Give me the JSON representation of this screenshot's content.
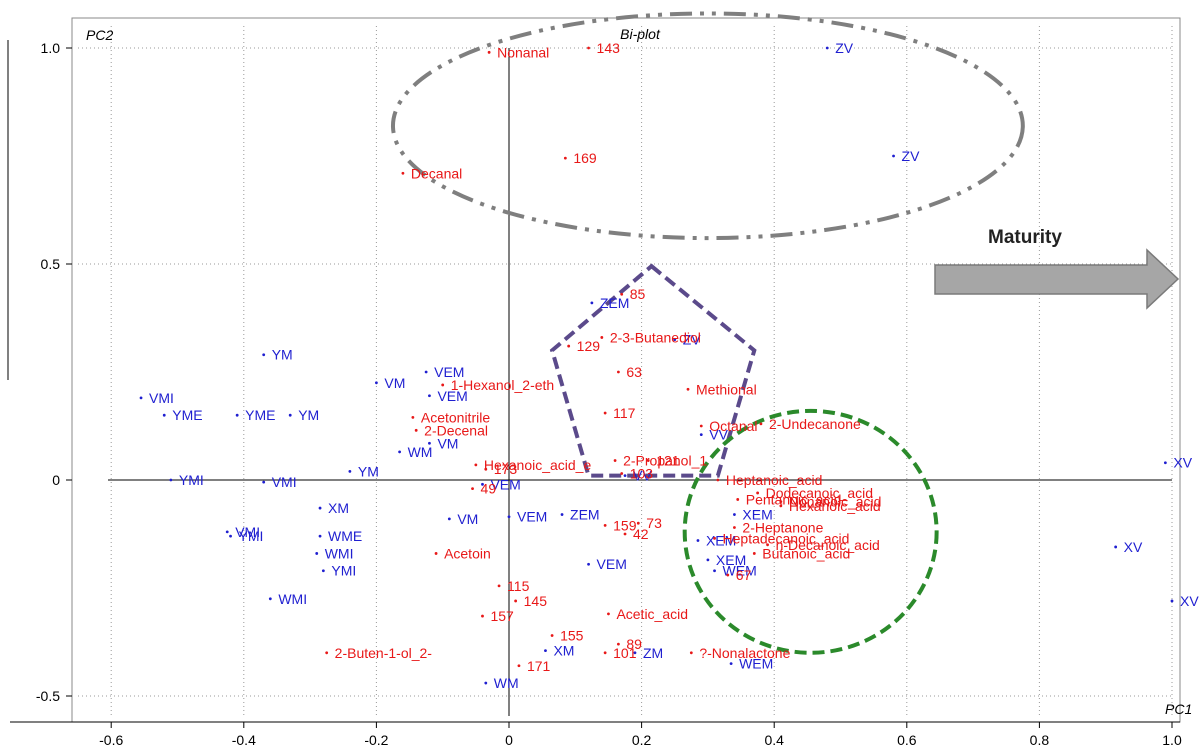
{
  "chart_data": {
    "type": "scatter",
    "title": "Bi-plot",
    "xlabel": "PC1",
    "ylabel": "PC2",
    "xlim": [
      -0.65,
      1.02
    ],
    "ylim": [
      -0.54,
      1.08
    ],
    "xticks": [
      "-0.6",
      "-0.4",
      "-0.2",
      "0",
      "0.2",
      "0.4",
      "0.6",
      "0.8",
      "1.0"
    ],
    "yticks": [
      "-0.5",
      "0",
      "0.5",
      "1.0"
    ],
    "grid": true,
    "annotation": "Maturity",
    "annotation_color": "#a6a6a6",
    "series": [
      {
        "color": "#1f1fd0",
        "points": [
          {
            "x": 0.48,
            "y": 1.0,
            "label": "ZV"
          },
          {
            "x": 0.58,
            "y": 0.75,
            "label": "ZV"
          },
          {
            "x": 0.125,
            "y": 0.41,
            "label": "ZEM"
          },
          {
            "x": 0.25,
            "y": 0.325,
            "label": "ZV"
          },
          {
            "x": -0.37,
            "y": 0.29,
            "label": "YM"
          },
          {
            "x": -0.555,
            "y": 0.19,
            "label": "VMI"
          },
          {
            "x": -0.52,
            "y": 0.15,
            "label": "YME"
          },
          {
            "x": -0.41,
            "y": 0.15,
            "label": "YME"
          },
          {
            "x": -0.33,
            "y": 0.15,
            "label": "YM"
          },
          {
            "x": -0.125,
            "y": 0.25,
            "label": "VEM"
          },
          {
            "x": -0.2,
            "y": 0.225,
            "label": "VM"
          },
          {
            "x": -0.12,
            "y": 0.195,
            "label": "VEM"
          },
          {
            "x": -0.12,
            "y": 0.085,
            "label": "VM"
          },
          {
            "x": -0.165,
            "y": 0.065,
            "label": "WM"
          },
          {
            "x": -0.24,
            "y": 0.02,
            "label": "YM"
          },
          {
            "x": 0.29,
            "y": 0.105,
            "label": "VV"
          },
          {
            "x": -0.51,
            "y": 0.0,
            "label": "YMI"
          },
          {
            "x": -0.37,
            "y": -0.005,
            "label": "VMI"
          },
          {
            "x": 0.175,
            "y": 0.01,
            "label": "VV"
          },
          {
            "x": -0.04,
            "y": -0.01,
            "label": "VEM"
          },
          {
            "x": -0.285,
            "y": -0.065,
            "label": "XM"
          },
          {
            "x": -0.09,
            "y": -0.09,
            "label": "VM"
          },
          {
            "x": 0.0,
            "y": -0.085,
            "label": "VEM"
          },
          {
            "x": 0.08,
            "y": -0.08,
            "label": "ZEM"
          },
          {
            "x": -0.425,
            "y": -0.12,
            "label": "VMI"
          },
          {
            "x": -0.42,
            "y": -0.13,
            "label": "YMI"
          },
          {
            "x": -0.285,
            "y": -0.13,
            "label": "WME"
          },
          {
            "x": -0.29,
            "y": -0.17,
            "label": "WMI"
          },
          {
            "x": -0.28,
            "y": -0.21,
            "label": "YMI"
          },
          {
            "x": -0.36,
            "y": -0.275,
            "label": "WMI"
          },
          {
            "x": 0.12,
            "y": -0.195,
            "label": "VEM"
          },
          {
            "x": 0.34,
            "y": -0.08,
            "label": "XEM"
          },
          {
            "x": 0.285,
            "y": -0.14,
            "label": "XEM"
          },
          {
            "x": 0.3,
            "y": -0.185,
            "label": "XEM"
          },
          {
            "x": 0.31,
            "y": -0.21,
            "label": "WEM"
          },
          {
            "x": 0.055,
            "y": -0.395,
            "label": "XM"
          },
          {
            "x": 0.19,
            "y": -0.4,
            "label": "ZM"
          },
          {
            "x": 0.335,
            "y": -0.425,
            "label": "WEM"
          },
          {
            "x": -0.035,
            "y": -0.47,
            "label": "WM"
          },
          {
            "x": 0.99,
            "y": 0.04,
            "label": "XV"
          },
          {
            "x": 0.915,
            "y": -0.155,
            "label": "XV"
          },
          {
            "x": 1.0,
            "y": -0.28,
            "label": "XV"
          }
        ]
      },
      {
        "color": "#e81818",
        "points": [
          {
            "x": -0.03,
            "y": 0.99,
            "label": "Nonanal"
          },
          {
            "x": 0.12,
            "y": 1.0,
            "label": "143"
          },
          {
            "x": 0.085,
            "y": 0.745,
            "label": "169"
          },
          {
            "x": -0.16,
            "y": 0.71,
            "label": "Decanal"
          },
          {
            "x": 0.17,
            "y": 0.43,
            "label": "85"
          },
          {
            "x": 0.14,
            "y": 0.33,
            "label": "2-3-Butanediol"
          },
          {
            "x": 0.09,
            "y": 0.31,
            "label": "129"
          },
          {
            "x": 0.165,
            "y": 0.25,
            "label": "63"
          },
          {
            "x": -0.1,
            "y": 0.22,
            "label": "1-Hexanol_2-eth"
          },
          {
            "x": 0.27,
            "y": 0.21,
            "label": "Methional"
          },
          {
            "x": 0.145,
            "y": 0.155,
            "label": "117"
          },
          {
            "x": -0.145,
            "y": 0.145,
            "label": "Acetonitrile"
          },
          {
            "x": -0.14,
            "y": 0.115,
            "label": "2-Decenal"
          },
          {
            "x": 0.29,
            "y": 0.125,
            "label": "Octanal"
          },
          {
            "x": 0.38,
            "y": 0.13,
            "label": "2-Undecanone"
          },
          {
            "x": 0.16,
            "y": 0.045,
            "label": "2-Propanol_1"
          },
          {
            "x": 0.21,
            "y": 0.045,
            "label": "121"
          },
          {
            "x": -0.05,
            "y": 0.035,
            "label": "Hexanoic_acid_e"
          },
          {
            "x": 0.17,
            "y": 0.015,
            "label": "103"
          },
          {
            "x": -0.035,
            "y": 0.025,
            "label": "173"
          },
          {
            "x": 0.315,
            "y": 0.0,
            "label": "Heptanoic_acid"
          },
          {
            "x": -0.055,
            "y": -0.02,
            "label": "49"
          },
          {
            "x": 0.375,
            "y": -0.03,
            "label": "Dodecanoic_acid"
          },
          {
            "x": 0.345,
            "y": -0.045,
            "label": "Pentanoic_acid"
          },
          {
            "x": 0.41,
            "y": -0.05,
            "label": "Nonanoic_acid"
          },
          {
            "x": 0.41,
            "y": -0.06,
            "label": "Hexanoic_acid"
          },
          {
            "x": 0.145,
            "y": -0.105,
            "label": "159"
          },
          {
            "x": 0.195,
            "y": -0.1,
            "label": "73"
          },
          {
            "x": 0.175,
            "y": -0.125,
            "label": "42"
          },
          {
            "x": 0.34,
            "y": -0.11,
            "label": "2-Heptanone"
          },
          {
            "x": 0.31,
            "y": -0.135,
            "label": "Heptadecanoic_acid"
          },
          {
            "x": 0.39,
            "y": -0.15,
            "label": "n-Decanoic_acid"
          },
          {
            "x": 0.37,
            "y": -0.17,
            "label": "Butanoic_acid"
          },
          {
            "x": 0.33,
            "y": -0.22,
            "label": "67"
          },
          {
            "x": -0.11,
            "y": -0.17,
            "label": "Acetoin"
          },
          {
            "x": -0.015,
            "y": -0.245,
            "label": "115"
          },
          {
            "x": 0.01,
            "y": -0.28,
            "label": "145"
          },
          {
            "x": -0.04,
            "y": -0.315,
            "label": "157"
          },
          {
            "x": 0.15,
            "y": -0.31,
            "label": "Acetic_acid"
          },
          {
            "x": 0.065,
            "y": -0.36,
            "label": "155"
          },
          {
            "x": 0.165,
            "y": -0.38,
            "label": "89"
          },
          {
            "x": 0.145,
            "y": -0.4,
            "label": "101"
          },
          {
            "x": 0.275,
            "y": -0.4,
            "label": "?-Nonalactone"
          },
          {
            "x": -0.275,
            "y": -0.4,
            "label": "2-Buten-1-ol_2-"
          },
          {
            "x": 0.015,
            "y": -0.43,
            "label": "171"
          }
        ]
      }
    ],
    "shapes": [
      {
        "kind": "ellipse",
        "color": "#7f7f7f",
        "cx": 0.3,
        "cy": 0.82,
        "rx": 0.475,
        "ry": 0.26
      },
      {
        "kind": "pentagon",
        "color": "#5b4a8b",
        "points": [
          [
            0.215,
            0.495
          ],
          [
            0.37,
            0.3
          ],
          [
            0.315,
            0.01
          ],
          [
            0.12,
            0.01
          ],
          [
            0.065,
            0.3
          ]
        ]
      },
      {
        "kind": "ellipse",
        "color": "#2b8a2b",
        "cx": 0.455,
        "cy": -0.12,
        "rx": 0.19,
        "ry": 0.28
      }
    ]
  }
}
